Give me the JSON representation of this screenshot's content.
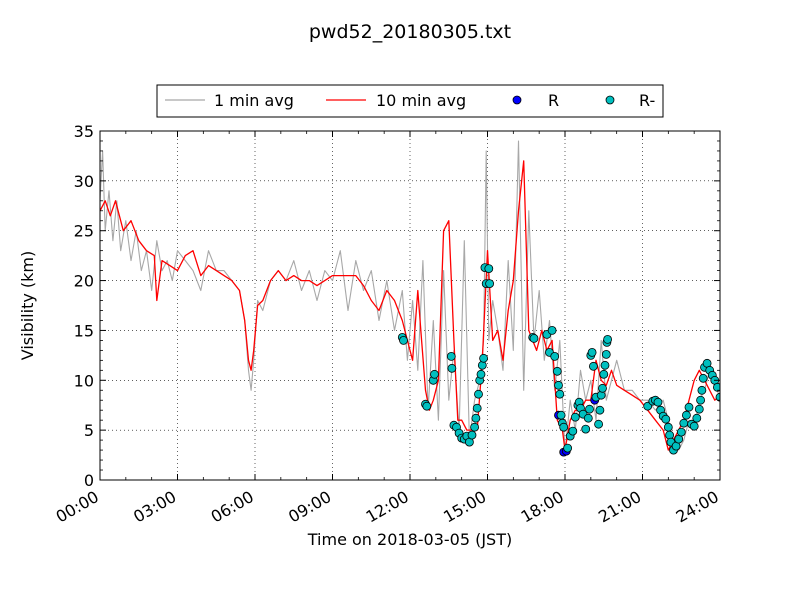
{
  "chart_data": {
    "type": "line",
    "title": "pwd52_20180305.txt",
    "xlabel": "Time on 2018-03-05 (JST)",
    "ylabel": "Visibility (km)",
    "xlim": [
      0,
      24
    ],
    "ylim": [
      0,
      35
    ],
    "x_ticks": [
      0,
      3,
      6,
      9,
      12,
      15,
      18,
      21,
      24
    ],
    "x_tick_labels": [
      "00:00",
      "03:00",
      "06:00",
      "09:00",
      "12:00",
      "15:00",
      "18:00",
      "21:00",
      "24:00"
    ],
    "y_ticks": [
      0,
      5,
      10,
      15,
      20,
      25,
      30,
      35
    ],
    "y_tick_labels": [
      "0",
      "5",
      "10",
      "15",
      "20",
      "25",
      "30",
      "35"
    ],
    "grid": true,
    "legend_position": "top",
    "legend": [
      "1 min avg",
      "10 min avg",
      "R",
      "R-"
    ],
    "colors": {
      "one_min": "#a8a8a8",
      "ten_min": "#ff0000",
      "R": "#0000ff",
      "R_minus": "#00bfbf"
    },
    "series": [
      {
        "name": "1 min avg",
        "kind": "line",
        "x": [
          0.0,
          0.1,
          0.2,
          0.35,
          0.5,
          0.65,
          0.8,
          1.0,
          1.2,
          1.4,
          1.6,
          1.8,
          2.0,
          2.2,
          2.4,
          2.6,
          2.8,
          3.0,
          3.3,
          3.6,
          3.9,
          4.2,
          4.5,
          4.8,
          5.1,
          5.4,
          5.6,
          5.75,
          5.85,
          5.95,
          6.1,
          6.3,
          6.6,
          6.9,
          7.2,
          7.5,
          7.8,
          8.1,
          8.4,
          8.7,
          9.0,
          9.3,
          9.6,
          9.9,
          10.2,
          10.5,
          10.8,
          11.1,
          11.4,
          11.7,
          11.9,
          12.1,
          12.3,
          12.5,
          12.7,
          12.9,
          13.1,
          13.3,
          13.5,
          13.7,
          13.9,
          14.1,
          14.3,
          14.5,
          14.7,
          14.85,
          14.95,
          15.05,
          15.2,
          15.4,
          15.6,
          15.8,
          16.0,
          16.2,
          16.4,
          16.6,
          16.8,
          17.0,
          17.2,
          17.4,
          17.6,
          17.8,
          18.0,
          18.2,
          18.4,
          18.6,
          18.8,
          19.0,
          19.2,
          19.4,
          19.6,
          19.8,
          20.0,
          20.3,
          20.6,
          20.9,
          21.2,
          21.5,
          21.8,
          22.0,
          22.2,
          22.4,
          22.6,
          22.8,
          23.0,
          23.2,
          23.4,
          23.6,
          23.8,
          24.0
        ],
        "y": [
          28,
          33,
          25,
          29,
          24,
          28,
          23,
          26,
          22,
          25,
          21,
          23,
          19,
          24,
          21,
          22,
          20,
          23,
          22,
          21,
          19,
          23,
          21,
          21,
          20,
          19,
          16,
          11,
          9,
          12,
          18,
          17,
          20,
          21,
          20,
          22,
          19,
          21,
          18,
          21,
          20,
          23,
          17,
          22,
          19,
          21,
          16,
          20,
          15,
          19,
          12,
          18,
          11,
          22,
          7,
          16,
          6,
          21,
          8,
          13,
          5,
          24,
          4,
          8,
          10,
          14,
          33,
          14,
          18,
          15,
          11,
          22,
          13,
          34,
          9,
          27,
          14,
          19,
          12,
          16,
          9,
          14,
          2.8,
          8,
          5,
          11,
          8,
          10,
          6,
          14,
          8,
          10,
          12,
          9,
          9,
          8,
          8,
          7,
          8,
          6,
          4,
          3,
          4,
          6,
          5,
          8,
          9,
          11,
          10,
          8
        ]
      },
      {
        "name": "10 min avg",
        "kind": "line",
        "x": [
          0.0,
          0.2,
          0.4,
          0.6,
          0.9,
          1.2,
          1.5,
          1.8,
          2.1,
          2.2,
          2.4,
          2.7,
          3.0,
          3.3,
          3.6,
          3.9,
          4.2,
          4.5,
          4.8,
          5.1,
          5.4,
          5.6,
          5.75,
          5.85,
          5.95,
          6.1,
          6.3,
          6.6,
          6.9,
          7.2,
          7.5,
          7.8,
          8.1,
          8.4,
          8.7,
          9.0,
          9.3,
          9.6,
          9.9,
          10.2,
          10.5,
          10.8,
          11.1,
          11.4,
          11.7,
          11.9,
          12.1,
          12.3,
          12.45,
          12.6,
          12.75,
          12.9,
          13.1,
          13.3,
          13.5,
          13.7,
          13.85,
          14.0,
          14.2,
          14.4,
          14.6,
          14.8,
          15.0,
          15.2,
          15.4,
          15.6,
          15.8,
          16.0,
          16.2,
          16.4,
          16.6,
          16.75,
          16.9,
          17.1,
          17.3,
          17.5,
          17.7,
          17.9,
          18.0,
          18.2,
          18.4,
          18.6,
          18.8,
          19.0,
          19.2,
          19.4,
          19.6,
          19.8,
          20.0,
          20.3,
          20.6,
          20.9,
          21.2,
          21.5,
          21.8,
          22.0,
          22.2,
          22.4,
          22.6,
          22.8,
          23.0,
          23.2,
          23.4,
          23.6,
          23.8,
          24.0
        ],
        "y": [
          27,
          28,
          26.5,
          28,
          25,
          26,
          24,
          23,
          22.5,
          18,
          22,
          21.5,
          21,
          22.5,
          23,
          20.5,
          21.5,
          21,
          20.5,
          20,
          19,
          16,
          12,
          11,
          13,
          17.5,
          18,
          20,
          21,
          20,
          20.5,
          20,
          20,
          19.5,
          20,
          20.5,
          20.5,
          20.5,
          20.5,
          19.5,
          18,
          17,
          19,
          18,
          16,
          14,
          12,
          19,
          14,
          9,
          7,
          8,
          10,
          25,
          26,
          14,
          6,
          6,
          5,
          5,
          5,
          12,
          23,
          14,
          15,
          12,
          17,
          20,
          27,
          32,
          15,
          14,
          13,
          15,
          13,
          14,
          6,
          5,
          3,
          6,
          7,
          7,
          8,
          8,
          12,
          10,
          9.5,
          11,
          9.5,
          9,
          8.5,
          8,
          7,
          6,
          5,
          3,
          4,
          5,
          6,
          8,
          10,
          11,
          10,
          9,
          8,
          8.5
        ]
      },
      {
        "name": "R",
        "kind": "scatter",
        "x": [
          17.75,
          17.95,
          18.05,
          19.15
        ],
        "y": [
          6.5,
          2.8,
          2.9,
          8
        ]
      },
      {
        "name": "R-",
        "kind": "scatter",
        "x": [
          11.7,
          11.75,
          12.6,
          12.65,
          12.9,
          12.95,
          13.6,
          13.62,
          13.7,
          13.8,
          13.9,
          14.0,
          14.1,
          14.2,
          14.3,
          14.4,
          14.5,
          14.55,
          14.6,
          14.65,
          14.7,
          14.75,
          14.8,
          14.85,
          14.9,
          14.95,
          15.05,
          15.08,
          16.75,
          16.8,
          17.3,
          17.4,
          17.5,
          17.6,
          17.7,
          17.75,
          17.8,
          17.85,
          17.9,
          17.95,
          18.1,
          18.2,
          18.3,
          18.4,
          18.5,
          18.55,
          18.6,
          18.7,
          18.8,
          18.9,
          18.95,
          19.0,
          19.05,
          19.1,
          19.2,
          19.3,
          19.35,
          19.4,
          19.45,
          19.5,
          19.55,
          19.6,
          19.62,
          19.65,
          21.2,
          21.4,
          21.5,
          21.6,
          21.7,
          21.8,
          21.9,
          22.0,
          22.05,
          22.1,
          22.2,
          22.3,
          22.4,
          22.5,
          22.6,
          22.7,
          22.8,
          22.9,
          23.0,
          23.1,
          23.2,
          23.25,
          23.3,
          23.35,
          23.4,
          23.5,
          23.6,
          23.7,
          23.8,
          23.9,
          24.0
        ],
        "y": [
          14.3,
          14,
          7.6,
          7.4,
          10,
          10.6,
          12.4,
          11.2,
          5.5,
          5.3,
          4.7,
          4.2,
          4.1,
          4.4,
          3.8,
          4.5,
          5.3,
          6.2,
          7.2,
          8.6,
          10,
          10.6,
          11.5,
          12.2,
          21.3,
          19.7,
          21.2,
          19.7,
          14.3,
          14.2,
          14.6,
          12.8,
          15,
          12.4,
          10.9,
          9.5,
          8.6,
          6.5,
          5.7,
          5.3,
          3.2,
          4.4,
          4.9,
          6.3,
          7.5,
          7.8,
          7.2,
          6.6,
          5.1,
          6.2,
          7.1,
          12.5,
          12.8,
          11.4,
          8.3,
          5.6,
          7,
          8.5,
          9.2,
          10.6,
          11.5,
          12.6,
          13.8,
          14.1,
          7.4,
          7.9,
          8,
          7.8,
          7,
          6.4,
          6.1,
          5.3,
          4.5,
          3.8,
          3,
          3.4,
          4.1,
          4.8,
          5.7,
          6.5,
          7.3,
          5.6,
          5.4,
          6.2,
          7.1,
          8,
          9,
          10.2,
          11.3,
          11.7,
          11,
          10.5,
          10,
          9.3,
          8.3
        ]
      }
    ]
  }
}
